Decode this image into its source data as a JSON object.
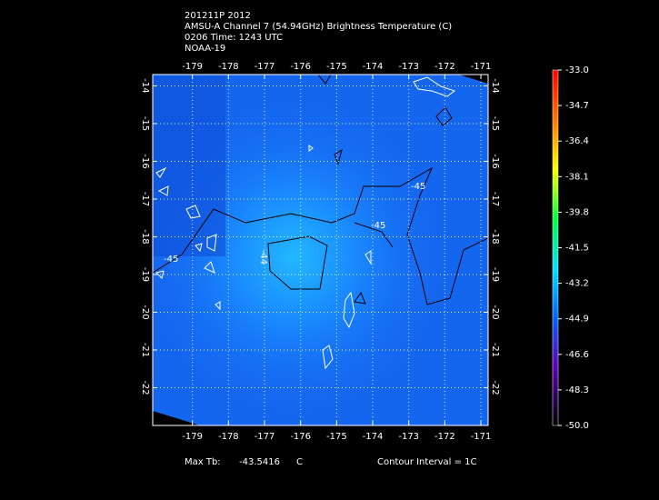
{
  "header": {
    "lines": [
      "201211P 2012",
      "AMSU-A Channel 7 (54.94GHz) Brightness Temperature (C)",
      "0206 Time: 1243 UTC",
      "NOAA-19"
    ]
  },
  "map": {
    "xlim": [
      -180.1,
      -170.8
    ],
    "ylim": [
      -23.0,
      -13.7
    ],
    "xticks": [
      -179,
      -178,
      -177,
      -176,
      -175,
      -174,
      -173,
      -172,
      -171
    ],
    "yticks": [
      -14,
      -15,
      -16,
      -17,
      -18,
      -19,
      -20,
      -21,
      -22
    ],
    "contour_labels": [
      "-45",
      "-45",
      "-44",
      "-45"
    ]
  },
  "colorbar": {
    "lim": [
      -50,
      -33
    ],
    "ticks": [
      {
        "value": -33,
        "label": "-33.0"
      },
      {
        "value": -34.7,
        "label": "-34.7"
      },
      {
        "value": -36.4,
        "label": "-36.4"
      },
      {
        "value": -38.1,
        "label": "-38.1"
      },
      {
        "value": -39.8,
        "label": "-39.8"
      },
      {
        "value": -41.5,
        "label": "-41.5"
      },
      {
        "value": -43.2,
        "label": "-43.2"
      },
      {
        "value": -44.9,
        "label": "-44.9"
      },
      {
        "value": -46.6,
        "label": "-46.6"
      },
      {
        "value": -48.3,
        "label": "-48.3"
      },
      {
        "value": -50,
        "label": "-50.0"
      }
    ]
  },
  "footer": {
    "max_label": "Max Tb:",
    "max_value": -43.5416,
    "unit": "C",
    "contour_interval": "Contour Interval = 1C"
  }
}
